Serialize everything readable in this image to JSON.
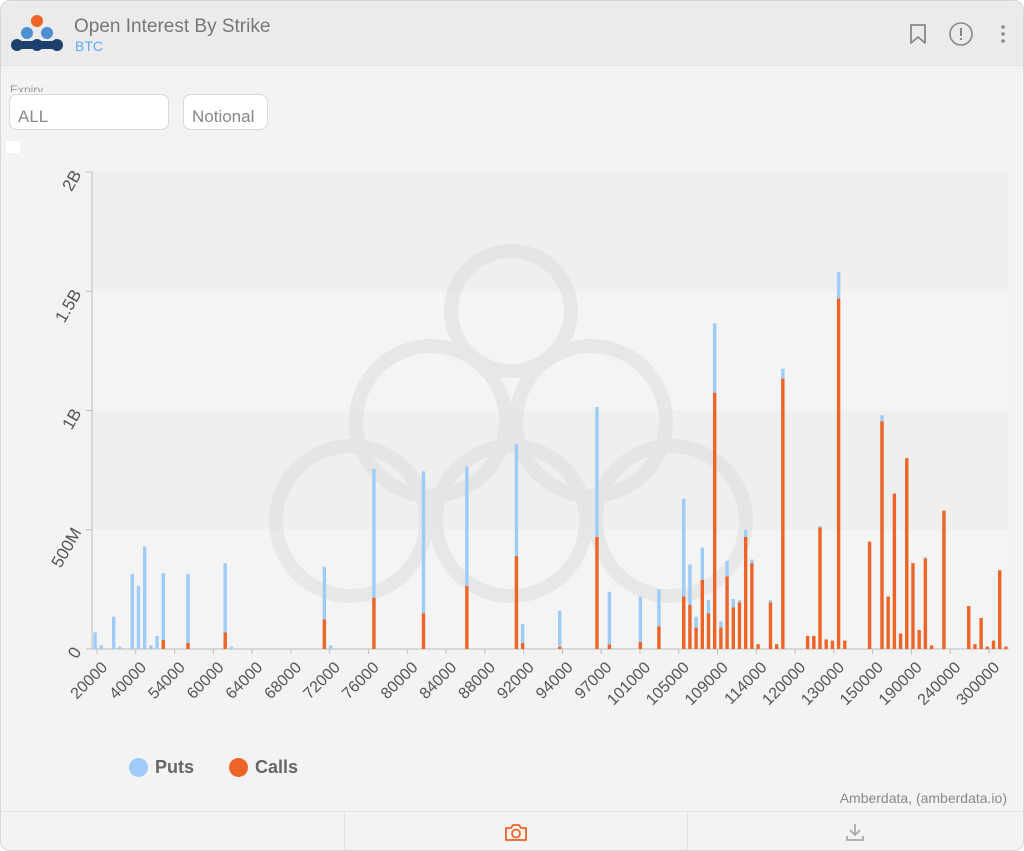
{
  "header": {
    "title": "Open Interest By Strike",
    "subtitle": "BTC",
    "bookmark_icon": "bookmark-icon",
    "info_icon": "info-circle-icon",
    "menu_icon": "more-vertical-icon"
  },
  "controls": {
    "expiry_label": "Expiry",
    "expiry_value": "ALL",
    "measure_value": "Notional"
  },
  "legend": {
    "puts": "Puts",
    "calls": "Calls"
  },
  "credit": "Amberdata, (amberdata.io)",
  "footer": {
    "camera_icon": "camera-icon",
    "download_icon": "download-icon"
  },
  "colors": {
    "puts": "#9fcbf8",
    "calls": "#ee6327",
    "accent": "#ee6327"
  },
  "chart_data": {
    "type": "bar",
    "stacked": true,
    "x_tick_labels": [
      "20000",
      "40000",
      "54000",
      "60000",
      "64000",
      "68000",
      "72000",
      "76000",
      "80000",
      "84000",
      "88000",
      "92000",
      "94000",
      "97000",
      "101000",
      "105000",
      "109000",
      "114000",
      "120000",
      "130000",
      "150000",
      "190000",
      "240000",
      "300000"
    ],
    "y_tick_labels": [
      "0",
      "500M",
      "1B",
      "1.5B",
      "2B"
    ],
    "ylim": [
      0,
      2000000000
    ],
    "unit_scale": 1000000,
    "series": [
      {
        "name": "Calls",
        "values": [
          0,
          0,
          0,
          0,
          0,
          0,
          0,
          0,
          0,
          0,
          0,
          38,
          0,
          0,
          0,
          25,
          0,
          0,
          0,
          0,
          0,
          70,
          0,
          0,
          0,
          0,
          0,
          0,
          0,
          0,
          0,
          0,
          0,
          0,
          0,
          0,
          0,
          125,
          0,
          0,
          0,
          0,
          0,
          0,
          0,
          215,
          0,
          0,
          0,
          0,
          0,
          0,
          0,
          150,
          0,
          0,
          0,
          0,
          0,
          0,
          265,
          0,
          0,
          0,
          0,
          0,
          0,
          0,
          390,
          25,
          0,
          0,
          0,
          0,
          0,
          10,
          0,
          0,
          0,
          0,
          0,
          470,
          0,
          20,
          0,
          0,
          0,
          0,
          30,
          0,
          0,
          95,
          0,
          0,
          0,
          220,
          185,
          90,
          290,
          150,
          1075,
          90,
          305,
          175,
          195,
          470,
          360,
          20,
          0,
          195,
          20,
          1135,
          0,
          0,
          0,
          55,
          55,
          510,
          40,
          35,
          1470,
          35,
          0,
          0,
          0,
          450,
          0,
          955,
          220,
          650,
          65,
          800,
          360,
          80,
          380,
          15,
          0,
          580,
          0,
          0,
          0,
          180,
          20,
          130,
          10,
          35,
          330,
          10
        ]
      },
      {
        "name": "Puts",
        "values": [
          70,
          15,
          0,
          135,
          10,
          0,
          315,
          265,
          430,
          15,
          55,
          280,
          0,
          0,
          0,
          290,
          0,
          0,
          0,
          0,
          0,
          290,
          10,
          0,
          0,
          0,
          0,
          0,
          0,
          0,
          0,
          0,
          0,
          0,
          0,
          0,
          0,
          220,
          15,
          0,
          0,
          0,
          0,
          0,
          0,
          540,
          0,
          0,
          0,
          0,
          0,
          0,
          0,
          595,
          0,
          0,
          0,
          0,
          0,
          0,
          500,
          0,
          0,
          0,
          0,
          0,
          0,
          0,
          470,
          80,
          0,
          0,
          0,
          0,
          0,
          150,
          0,
          0,
          0,
          0,
          0,
          545,
          0,
          220,
          0,
          0,
          0,
          0,
          190,
          0,
          0,
          155,
          0,
          0,
          0,
          410,
          170,
          45,
          135,
          55,
          290,
          25,
          65,
          35,
          10,
          30,
          15,
          0,
          0,
          10,
          0,
          40,
          0,
          0,
          0,
          0,
          0,
          5,
          0,
          0,
          110,
          0,
          0,
          0,
          0,
          0,
          0,
          25,
          0,
          5,
          0,
          0,
          0,
          0,
          5,
          0,
          0,
          0,
          0,
          0,
          0,
          0,
          0,
          0,
          0,
          0,
          0,
          0
        ]
      }
    ]
  }
}
